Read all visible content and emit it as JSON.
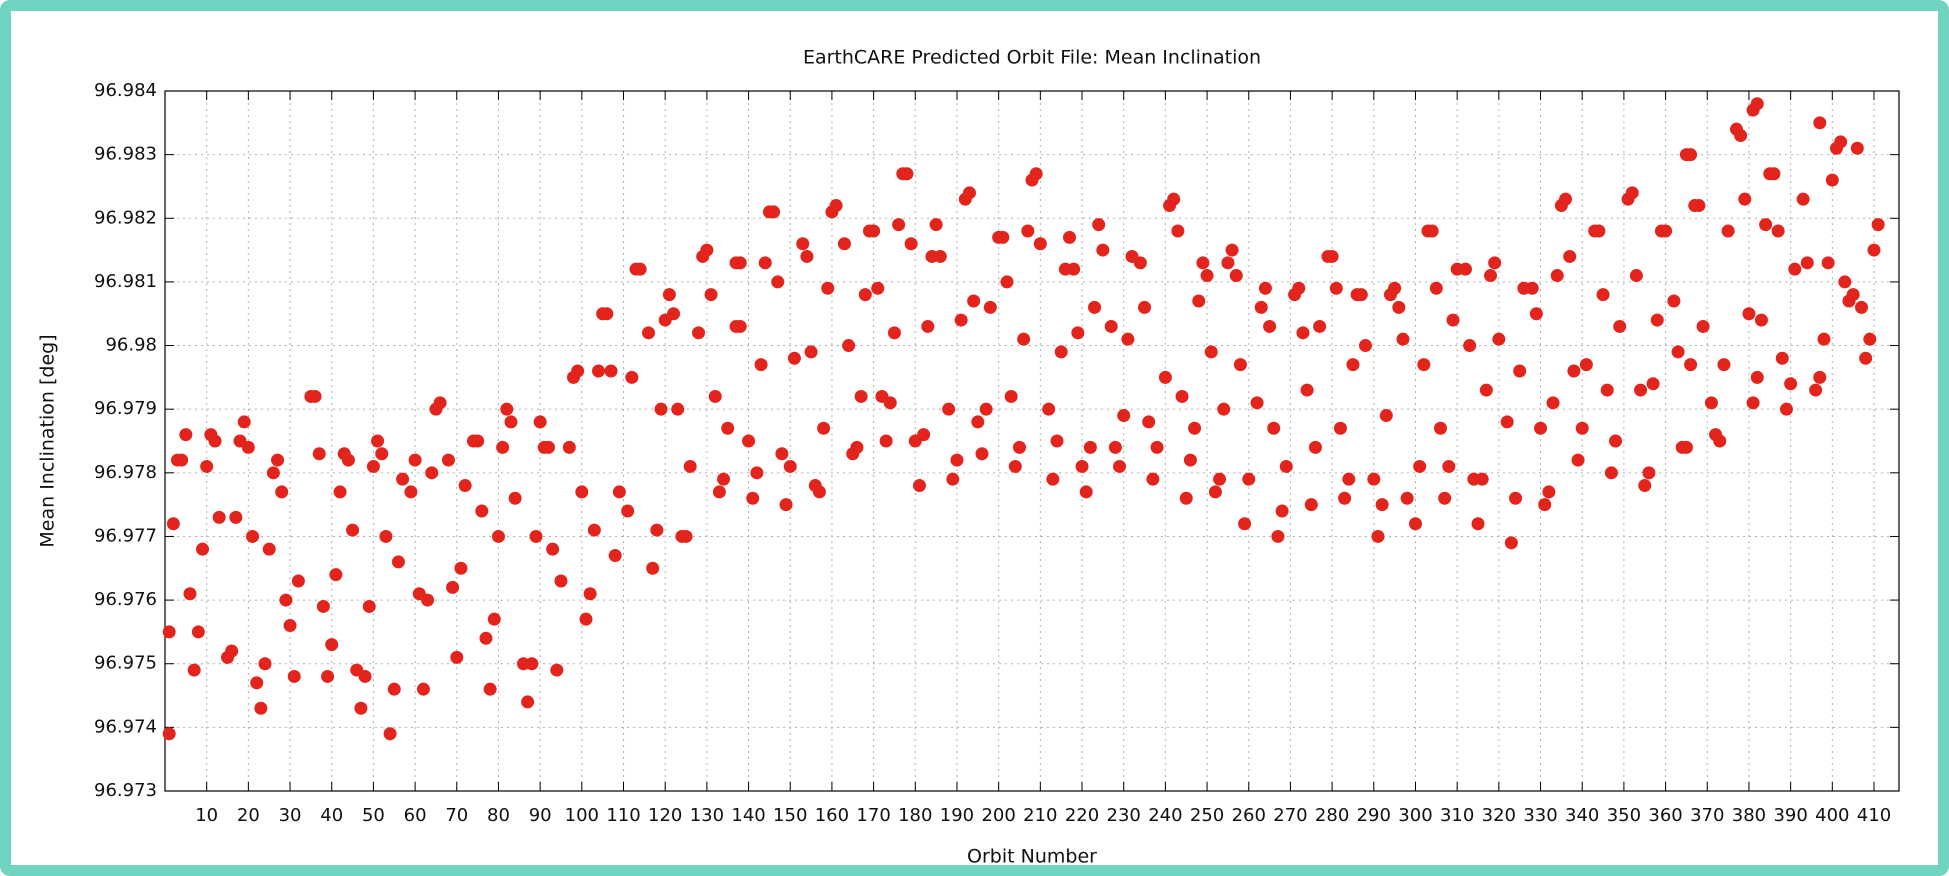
{
  "chart_data": {
    "type": "scatter",
    "title": "EarthCARE Predicted Orbit File: Mean Inclination",
    "x_label": "Orbit Number",
    "y_label": "Mean Inclination [deg]",
    "color": "#e3241c",
    "grid": true,
    "xlim": [
      0,
      416
    ],
    "ylim": [
      96.973,
      96.984
    ],
    "xticks": [
      10,
      20,
      30,
      40,
      50,
      60,
      70,
      80,
      90,
      100,
      110,
      120,
      130,
      140,
      150,
      160,
      170,
      180,
      190,
      200,
      210,
      220,
      230,
      240,
      250,
      260,
      270,
      280,
      290,
      300,
      310,
      320,
      330,
      340,
      350,
      360,
      370,
      380,
      390,
      400,
      410
    ],
    "yticks": [
      96.973,
      96.974,
      96.975,
      96.976,
      96.977,
      96.978,
      96.979,
      96.98,
      96.981,
      96.982,
      96.983,
      96.984
    ],
    "x": [
      1,
      1,
      2,
      3,
      4,
      5,
      6,
      7,
      8,
      9,
      10,
      11,
      12,
      13,
      15,
      16,
      17,
      18,
      19,
      20,
      21,
      22,
      23,
      24,
      25,
      26,
      27,
      28,
      29,
      30,
      31,
      32,
      35,
      36,
      37,
      38,
      39,
      40,
      41,
      42,
      43,
      44,
      45,
      46,
      47,
      48,
      49,
      50,
      51,
      52,
      53,
      54,
      55,
      56,
      57,
      59,
      60,
      61,
      62,
      63,
      64,
      65,
      66,
      68,
      69,
      70,
      71,
      72,
      74,
      75,
      76,
      77,
      78,
      79,
      80,
      81,
      82,
      83,
      84,
      86,
      87,
      88,
      89,
      90,
      91,
      92,
      93,
      94,
      95,
      97,
      98,
      99,
      100,
      101,
      102,
      103,
      104,
      105,
      106,
      107,
      108,
      109,
      111,
      112,
      113,
      114,
      116,
      117,
      118,
      119,
      120,
      121,
      122,
      123,
      124,
      125,
      126,
      128,
      129,
      130,
      131,
      132,
      133,
      134,
      135,
      137,
      138,
      137,
      138,
      140,
      141,
      142,
      143,
      144,
      145,
      146,
      147,
      148,
      149,
      150,
      151,
      153,
      154,
      155,
      156,
      157,
      158,
      159,
      160,
      161,
      163,
      164,
      165,
      166,
      167,
      168,
      169,
      170,
      171,
      172,
      173,
      174,
      175,
      176,
      177,
      178,
      179,
      180,
      181,
      182,
      183,
      184,
      185,
      186,
      188,
      189,
      190,
      191,
      192,
      193,
      194,
      195,
      196,
      197,
      198,
      200,
      201,
      202,
      203,
      204,
      205,
      206,
      207,
      208,
      209,
      210,
      212,
      213,
      214,
      215,
      216,
      217,
      218,
      219,
      220,
      221,
      222,
      223,
      224,
      225,
      227,
      228,
      229,
      230,
      231,
      232,
      234,
      235,
      236,
      237,
      238,
      240,
      241,
      242,
      243,
      244,
      245,
      246,
      247,
      248,
      249,
      250,
      251,
      252,
      253,
      254,
      255,
      256,
      257,
      258,
      259,
      260,
      262,
      263,
      264,
      265,
      266,
      267,
      268,
      269,
      271,
      272,
      273,
      274,
      275,
      276,
      277,
      279,
      280,
      281,
      282,
      283,
      284,
      285,
      286,
      287,
      288,
      290,
      291,
      292,
      293,
      294,
      295,
      296,
      297,
      298,
      300,
      301,
      302,
      303,
      304,
      305,
      306,
      307,
      308,
      309,
      310,
      312,
      313,
      314,
      315,
      316,
      317,
      318,
      319,
      320,
      322,
      323,
      324,
      325,
      326,
      328,
      329,
      330,
      331,
      332,
      333,
      334,
      335,
      336,
      337,
      338,
      339,
      340,
      341,
      343,
      344,
      345,
      346,
      347,
      348,
      349,
      351,
      352,
      353,
      354,
      355,
      356,
      357,
      358,
      359,
      360,
      362,
      363,
      364,
      365,
      366,
      365,
      366,
      367,
      368,
      369,
      371,
      372,
      373,
      374,
      375,
      377,
      378,
      379,
      380,
      381,
      382,
      383,
      384,
      385,
      386,
      387,
      388,
      389,
      390,
      391,
      381,
      382,
      393,
      394,
      396,
      397,
      397,
      398,
      399,
      400,
      401,
      402,
      403,
      404,
      405,
      406,
      407,
      408,
      409,
      410,
      411
    ],
    "values": [
      96.9739,
      96.9755,
      96.9772,
      96.9782,
      96.9782,
      96.9786,
      96.9761,
      96.9749,
      96.9755,
      96.9768,
      96.9781,
      96.9786,
      96.9785,
      96.9773,
      96.9751,
      96.9752,
      96.9773,
      96.9785,
      96.9788,
      96.9784,
      96.977,
      96.9747,
      96.9743,
      96.975,
      96.9768,
      96.978,
      96.9782,
      96.9777,
      96.976,
      96.9756,
      96.9748,
      96.9763,
      96.9792,
      96.9792,
      96.9783,
      96.9759,
      96.9748,
      96.9753,
      96.9764,
      96.9777,
      96.9783,
      96.9782,
      96.9771,
      96.9749,
      96.9743,
      96.9748,
      96.9759,
      96.9781,
      96.9785,
      96.9783,
      96.977,
      96.9739,
      96.9746,
      96.9766,
      96.9779,
      96.9777,
      96.9782,
      96.9761,
      96.9746,
      96.976,
      96.978,
      96.979,
      96.9791,
      96.9782,
      96.9762,
      96.9751,
      96.9765,
      96.9778,
      96.9785,
      96.9785,
      96.9774,
      96.9754,
      96.9746,
      96.9757,
      96.977,
      96.9784,
      96.979,
      96.9788,
      96.9776,
      96.975,
      96.9744,
      96.975,
      96.977,
      96.9788,
      96.9784,
      96.9784,
      96.9768,
      96.9749,
      96.9763,
      96.9784,
      96.9795,
      96.9796,
      96.9777,
      96.9757,
      96.9761,
      96.9771,
      96.9796,
      96.9805,
      96.9805,
      96.9796,
      96.9767,
      96.9777,
      96.9774,
      96.9795,
      96.9812,
      96.9812,
      96.9802,
      96.9765,
      96.9771,
      96.979,
      96.9804,
      96.9808,
      96.9805,
      96.979,
      96.977,
      96.977,
      96.9781,
      96.9802,
      96.9814,
      96.9815,
      96.9808,
      96.9792,
      96.9777,
      96.9779,
      96.9787,
      96.9803,
      96.9803,
      96.9813,
      96.9813,
      96.9785,
      96.9776,
      96.978,
      96.9797,
      96.9813,
      96.9821,
      96.9821,
      96.981,
      96.9783,
      96.9775,
      96.9781,
      96.9798,
      96.9816,
      96.9814,
      96.9799,
      96.9778,
      96.9777,
      96.9787,
      96.9809,
      96.9821,
      96.9822,
      96.9816,
      96.98,
      96.9783,
      96.9784,
      96.9792,
      96.9808,
      96.9818,
      96.9818,
      96.9809,
      96.9792,
      96.9785,
      96.9791,
      96.9802,
      96.9819,
      96.9827,
      96.9827,
      96.9816,
      96.9785,
      96.9778,
      96.9786,
      96.9803,
      96.9814,
      96.9819,
      96.9814,
      96.979,
      96.9779,
      96.9782,
      96.9804,
      96.9823,
      96.9824,
      96.9807,
      96.9788,
      96.9783,
      96.979,
      96.9806,
      96.9817,
      96.9817,
      96.981,
      96.9792,
      96.9781,
      96.9784,
      96.9801,
      96.9818,
      96.9826,
      96.9827,
      96.9816,
      96.979,
      96.9779,
      96.9785,
      96.9799,
      96.9812,
      96.9817,
      96.9812,
      96.9802,
      96.9781,
      96.9777,
      96.9784,
      96.9806,
      96.9819,
      96.9815,
      96.9803,
      96.9784,
      96.9781,
      96.9789,
      96.9801,
      96.9814,
      96.9813,
      96.9806,
      96.9788,
      96.9779,
      96.9784,
      96.9795,
      96.9822,
      96.9823,
      96.9818,
      96.9792,
      96.9776,
      96.9782,
      96.9787,
      96.9807,
      96.9813,
      96.9811,
      96.9799,
      96.9777,
      96.9779,
      96.979,
      96.9813,
      96.9815,
      96.9811,
      96.9797,
      96.9772,
      96.9779,
      96.9791,
      96.9806,
      96.9809,
      96.9803,
      96.9787,
      96.977,
      96.9774,
      96.9781,
      96.9808,
      96.9809,
      96.9802,
      96.9793,
      96.9775,
      96.9784,
      96.9803,
      96.9814,
      96.9814,
      96.9809,
      96.9787,
      96.9776,
      96.9779,
      96.9797,
      96.9808,
      96.9808,
      96.98,
      96.9779,
      96.977,
      96.9775,
      96.9789,
      96.9808,
      96.9809,
      96.9806,
      96.9801,
      96.9776,
      96.9772,
      96.9781,
      96.9797,
      96.9818,
      96.9818,
      96.9809,
      96.9787,
      96.9776,
      96.9781,
      96.9804,
      96.9812,
      96.9812,
      96.98,
      96.9779,
      96.9772,
      96.9779,
      96.9793,
      96.9811,
      96.9813,
      96.9801,
      96.9788,
      96.9769,
      96.9776,
      96.9796,
      96.9809,
      96.9809,
      96.9805,
      96.9787,
      96.9775,
      96.9777,
      96.9791,
      96.9811,
      96.9822,
      96.9823,
      96.9814,
      96.9796,
      96.9782,
      96.9787,
      96.9797,
      96.9818,
      96.9818,
      96.9808,
      96.9793,
      96.978,
      96.9785,
      96.9803,
      96.9823,
      96.9824,
      96.9811,
      96.9793,
      96.9778,
      96.978,
      96.9794,
      96.9804,
      96.9818,
      96.9818,
      96.9807,
      96.9799,
      96.9784,
      96.9784,
      96.9797,
      96.983,
      96.983,
      96.9822,
      96.9822,
      96.9803,
      96.9791,
      96.9786,
      96.9785,
      96.9797,
      96.9818,
      96.9834,
      96.9833,
      96.9823,
      96.9805,
      96.9791,
      96.9795,
      96.9804,
      96.9819,
      96.9827,
      96.9827,
      96.9818,
      96.9798,
      96.979,
      96.9794,
      96.9812,
      96.9837,
      96.9838,
      96.9823,
      96.9813,
      96.9793,
      96.9795,
      96.9835,
      96.9801,
      96.9813,
      96.9826,
      96.9831,
      96.9832,
      96.981,
      96.9807,
      96.9808,
      96.9831,
      96.9806,
      96.9798,
      96.9801,
      96.9815,
      96.9819
    ]
  }
}
